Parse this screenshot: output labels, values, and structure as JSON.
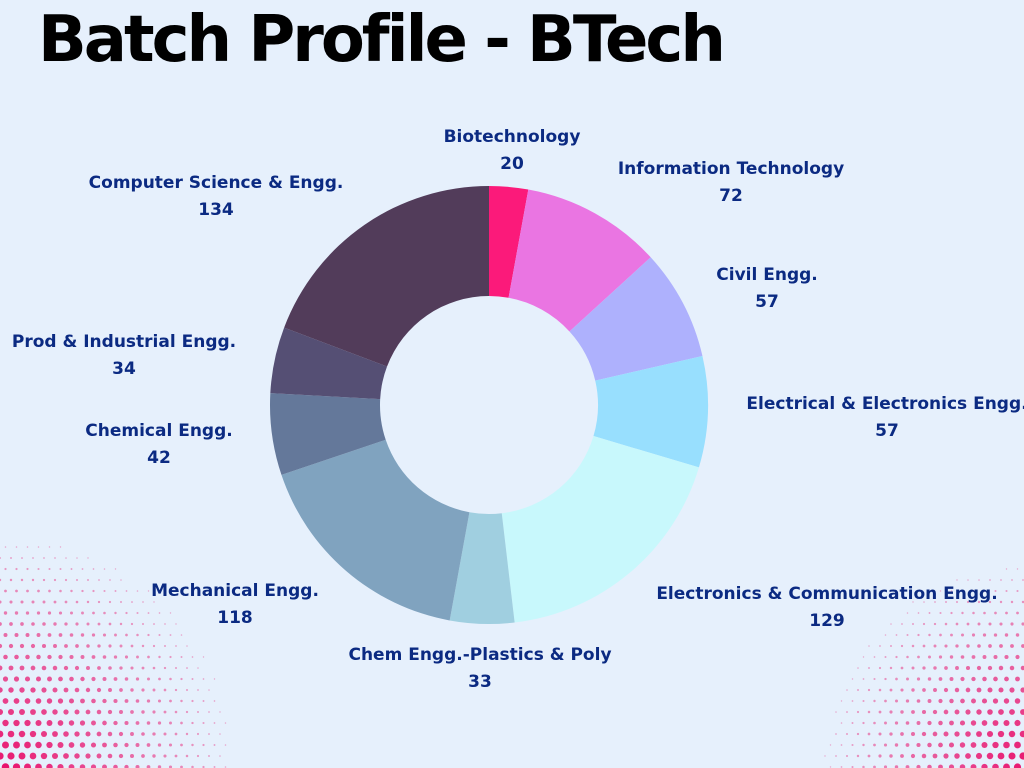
{
  "title": "Batch Profile - BTech",
  "chart_data": {
    "type": "pie",
    "variant": "donut",
    "title": "Batch Profile - BTech",
    "categories": [
      "Biotechnology",
      "Information Technology",
      "Civil Engg.",
      "Electrical & Electronics Engg.",
      "Electronics & Communication Engg.",
      "Chem Engg.-Plastics & Poly",
      "Mechanical Engg.",
      "Chemical Engg.",
      "Prod & Industrial Engg.",
      "Computer Science & Engg."
    ],
    "values": [
      20,
      72,
      57,
      57,
      129,
      33,
      118,
      42,
      34,
      134
    ],
    "colors": [
      "#fb1a7a",
      "#ea75e2",
      "#aeb1fd",
      "#98dffe",
      "#c8f8fc",
      "#a0cfe0",
      "#80a3bf",
      "#64789a",
      "#554f74",
      "#523c5a"
    ]
  },
  "background": "#e6f0fc",
  "accent": "#e8146e"
}
